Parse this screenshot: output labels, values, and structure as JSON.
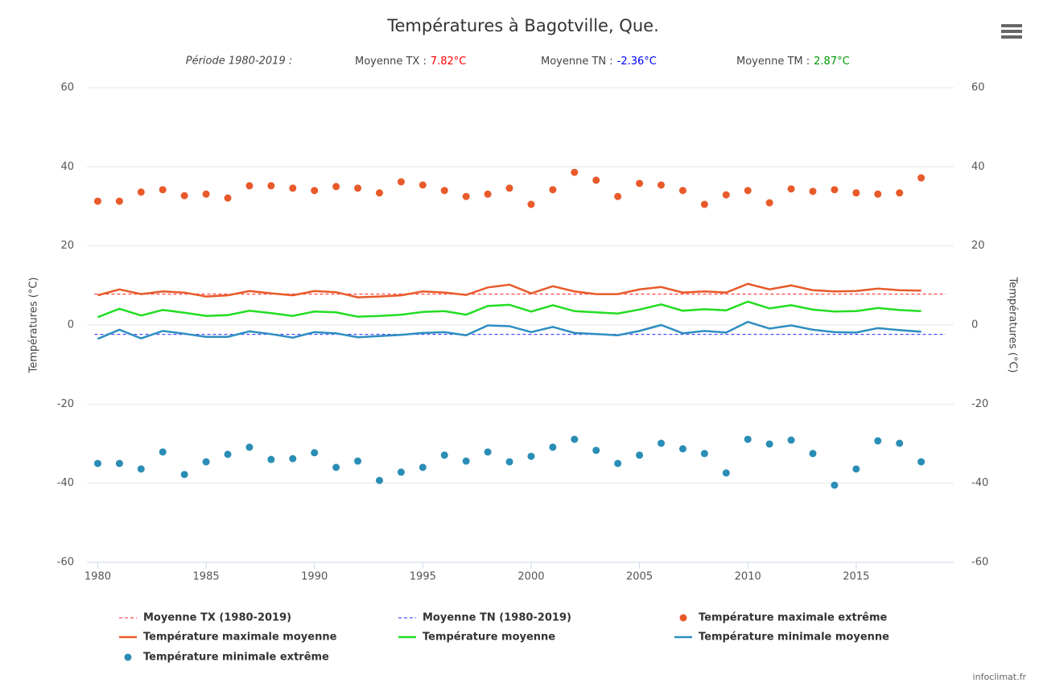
{
  "chart_data": {
    "type": "line",
    "title": "Températures à Bagotville, Que.",
    "period": "Période 1980-2019 :",
    "summary": [
      {
        "label": "Moyenne TX :",
        "value": 7.82,
        "value_label": "7.82°C",
        "color": "#ff0000",
        "line": {
          "name": "Moyenne TX (1980-2019)",
          "color": "#ff4d4d"
        }
      },
      {
        "label": "Moyenne TN :",
        "value": -2.36,
        "value_label": "-2.36°C",
        "color": "#0000ff",
        "line": {
          "name": "Moyenne TN (1980-2019)",
          "color": "#4d4dff"
        }
      },
      {
        "label": "Moyenne TM :",
        "value": 2.87,
        "value_label": "2.87°C",
        "color": "#009900"
      }
    ],
    "y_label": "Températures (°C)",
    "y2_label": "Températures (°C)",
    "credits": "infoclimat.fr",
    "x": [
      1980,
      1981,
      1982,
      1983,
      1984,
      1985,
      1986,
      1987,
      1988,
      1989,
      1990,
      1991,
      1992,
      1993,
      1994,
      1995,
      1996,
      1997,
      1998,
      1999,
      2000,
      2001,
      2002,
      2003,
      2004,
      2005,
      2006,
      2007,
      2008,
      2009,
      2010,
      2011,
      2012,
      2013,
      2014,
      2015,
      2016,
      2017,
      2018
    ],
    "xlim": [
      1979.5,
      2019.5
    ],
    "xticks": [
      1980,
      1985,
      1990,
      1995,
      2000,
      2005,
      2010,
      2015
    ],
    "ylim": [
      -60,
      60
    ],
    "yticks": [
      -60,
      -40,
      -20,
      0,
      20,
      40,
      60
    ],
    "y2lim": [
      -60,
      60
    ],
    "y2ticks": [
      -60,
      -40,
      -20,
      0,
      20,
      40,
      60
    ],
    "grid": true,
    "series": [
      {
        "name": "Température maximale extrême",
        "kind": "scatter",
        "color": "#e85a2a",
        "values": [
          31.3,
          31.3,
          33.6,
          34.2,
          32.7,
          33.1,
          32.1,
          35.2,
          35.2,
          34.6,
          34.0,
          35.0,
          34.6,
          33.4,
          36.2,
          35.4,
          34.0,
          32.5,
          33.1,
          34.6,
          30.5,
          34.2,
          38.6,
          36.6,
          32.5,
          35.8,
          35.4,
          34.0,
          30.5,
          32.9,
          34.0,
          30.9,
          34.4,
          33.8,
          34.2,
          33.4,
          33.1,
          33.4,
          37.2
        ]
      },
      {
        "name": "Température maximale moyenne",
        "kind": "line",
        "color": "#e85a2a",
        "values": [
          7.5,
          9.0,
          7.8,
          8.5,
          8.2,
          7.2,
          7.5,
          8.6,
          8.0,
          7.5,
          8.6,
          8.3,
          7.0,
          7.2,
          7.5,
          8.5,
          8.2,
          7.6,
          9.5,
          10.2,
          8.0,
          9.8,
          8.5,
          7.8,
          7.8,
          9.0,
          9.6,
          8.2,
          8.5,
          8.2,
          10.4,
          9.0,
          10.0,
          8.8,
          8.5,
          8.6,
          9.2,
          8.8,
          8.7
        ]
      },
      {
        "name": "Température moyenne",
        "kind": "line",
        "color": "#22dd22",
        "values": [
          2.0,
          4.1,
          2.4,
          3.8,
          3.1,
          2.3,
          2.5,
          3.6,
          3.0,
          2.3,
          3.4,
          3.2,
          2.1,
          2.3,
          2.6,
          3.3,
          3.5,
          2.6,
          4.8,
          5.1,
          3.4,
          5.0,
          3.5,
          3.2,
          2.9,
          3.9,
          5.2,
          3.6,
          4.0,
          3.7,
          5.9,
          4.2,
          5.0,
          3.9,
          3.4,
          3.5,
          4.3,
          3.8,
          3.5
        ]
      },
      {
        "name": "Température minimale moyenne",
        "kind": "line",
        "color": "#2e8ec0",
        "values": [
          -3.5,
          -1.2,
          -3.4,
          -1.5,
          -2.2,
          -3.0,
          -3.0,
          -1.6,
          -2.3,
          -3.2,
          -1.8,
          -2.1,
          -3.1,
          -2.8,
          -2.5,
          -2.0,
          -1.8,
          -2.6,
          -0.1,
          -0.3,
          -1.8,
          -0.5,
          -2.0,
          -2.3,
          -2.6,
          -1.5,
          0,
          -2.1,
          -1.5,
          -1.9,
          0.8,
          -0.9,
          -0.1,
          -1.2,
          -1.8,
          -1.9,
          -0.8,
          -1.3,
          -1.7
        ]
      },
      {
        "name": "Température minimale extrême",
        "kind": "scatter",
        "color": "#2a8db5",
        "values": [
          -35.0,
          -35.0,
          -36.4,
          -32.1,
          -37.8,
          -34.6,
          -32.7,
          -30.9,
          -34.0,
          -33.8,
          -32.3,
          -36.0,
          -34.4,
          -39.3,
          -37.2,
          -36.0,
          -32.9,
          -34.4,
          -32.1,
          -34.6,
          -33.2,
          -30.9,
          -28.9,
          -31.7,
          -35.0,
          -32.9,
          -29.9,
          -31.3,
          -32.5,
          -37.4,
          -28.9,
          -30.1,
          -29.1,
          -32.5,
          -40.5,
          -36.4,
          -29.3,
          -29.9,
          -34.6
        ]
      }
    ]
  }
}
